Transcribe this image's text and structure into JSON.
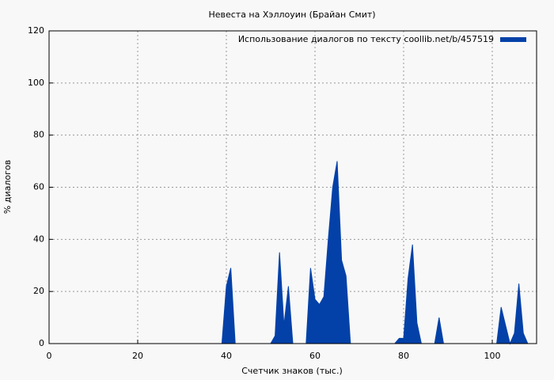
{
  "chart_data": {
    "type": "area",
    "title": "Невеста на Хэллоуин (Брайан Смит)",
    "x_label": "Счетчик знаков (тыс.)",
    "y_label": "% диалогов",
    "x": [
      0,
      39,
      40,
      41,
      42,
      50,
      51,
      52,
      53,
      54,
      55,
      58,
      59,
      60,
      61,
      62,
      63,
      64,
      65,
      66,
      67,
      68,
      78,
      79,
      80,
      81,
      82,
      83,
      84,
      87,
      88,
      89,
      101,
      102,
      103,
      104,
      105,
      106,
      107,
      108,
      110
    ],
    "series": [
      {
        "name": "Использование диалогов по тексту  coollib.net/b/457519",
        "color": "#0341a8",
        "values": [
          0,
          0,
          22,
          29,
          0,
          0,
          3,
          35,
          7,
          22,
          0,
          0,
          29,
          17,
          15,
          18,
          40,
          60,
          70,
          32,
          26,
          0,
          0,
          2,
          2,
          25,
          38,
          8,
          0,
          0,
          10,
          0,
          0,
          14,
          7,
          0,
          4,
          23,
          4,
          0,
          0
        ]
      }
    ],
    "xlim": [
      0,
      110
    ],
    "ylim": [
      0,
      120
    ],
    "xticks": [
      0,
      20,
      40,
      60,
      80,
      100
    ],
    "yticks": [
      0,
      20,
      40,
      60,
      80,
      100,
      120
    ],
    "grid": true,
    "legend": "top-right"
  }
}
